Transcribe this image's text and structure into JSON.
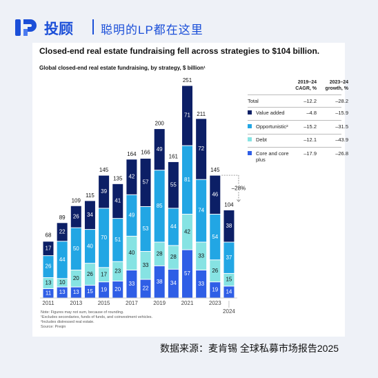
{
  "header": {
    "brand": "投顾",
    "slogan": "聪明的LP都在这里"
  },
  "chart_data": {
    "type": "stacked_bar",
    "title": "Closed-end real estate fundraising fell across strategies to $104 billion.",
    "subtitle": "Global closed-end real estate fundraising, by strategy, $ billion¹",
    "categories": [
      "2011",
      null,
      "2013",
      null,
      "2015",
      null,
      "2017",
      null,
      "2019",
      null,
      "2021",
      null,
      "2023",
      "2024"
    ],
    "series": [
      {
        "name": "Core and core plus",
        "color": "#2f5ee6",
        "values": [
          11,
          13,
          13,
          15,
          19,
          20,
          33,
          22,
          38,
          34,
          57,
          33,
          19,
          14
        ]
      },
      {
        "name": "Debt",
        "color": "#86e3e3",
        "values": [
          13,
          10,
          20,
          26,
          17,
          23,
          40,
          33,
          28,
          28,
          42,
          33,
          26,
          15
        ]
      },
      {
        "name": "Opportunistic²",
        "color": "#22a6e4",
        "values": [
          26,
          44,
          50,
          40,
          70,
          51,
          49,
          53,
          85,
          44,
          81,
          74,
          54,
          37
        ]
      },
      {
        "name": "Value added",
        "color": "#0c1f66",
        "values": [
          17,
          22,
          26,
          34,
          39,
          41,
          42,
          57,
          49,
          55,
          71,
          72,
          46,
          38
        ]
      }
    ],
    "totals": [
      68,
      89,
      109,
      115,
      145,
      135,
      164,
      166,
      200,
      161,
      251,
      211,
      145,
      104
    ],
    "annotation": "–28%",
    "table": {
      "columns": [
        "2019–24 CAGR, %",
        "2023–24 growth, %"
      ],
      "total_label": "Total",
      "total_values": [
        "–12.2",
        "–28.2"
      ],
      "series_values": [
        [
          "–17.9",
          "–26.8"
        ],
        [
          "–12.1",
          "–43.9"
        ],
        [
          "–15.2",
          "–31.5"
        ],
        [
          "–4.8",
          "–15.9"
        ]
      ]
    },
    "notes": [
      "Note: Figures may not sum, because of rounding.",
      "¹Excludes secondaries, funds of funds, and coinvestment vehicles.",
      "²Includes distressed real estate.",
      "Source: Preqin"
    ]
  },
  "footer": {
    "source": "数据来源：麦肯锡 全球私募市场报告2025"
  }
}
